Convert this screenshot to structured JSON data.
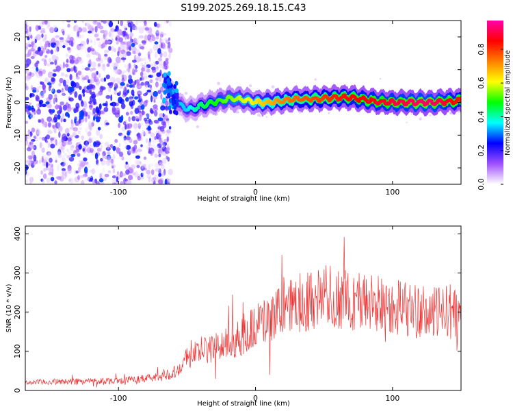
{
  "title": "S199.2025.269.18.15.C43",
  "chart_data": [
    {
      "type": "heatmap",
      "name": "spectrogram",
      "xlabel": "Height of straight line (km)",
      "ylabel": "Frequency (Hz)",
      "xlim": [
        -168,
        150
      ],
      "ylim": [
        -25,
        25
      ],
      "xticks": [
        -100,
        0,
        100
      ],
      "yticks": [
        -20,
        -10,
        0,
        10,
        20
      ],
      "colorbar": {
        "label": "Normalized spectral amplitude",
        "range": [
          0,
          0.97
        ],
        "ticks": [
          0.0,
          0.2,
          0.4,
          0.6,
          0.8
        ],
        "tick_labels": [
          "0.0",
          "0.2",
          "0.4",
          "0.6",
          "0.8"
        ],
        "colors": [
          "#ffffff",
          "#a050ff",
          "#0000ff",
          "#00ffff",
          "#00ff00",
          "#ffff00",
          "#ff8000",
          "#ff0000",
          "#ff00aa"
        ]
      },
      "ridge": {
        "x": [
          -65,
          -60,
          -55,
          -50,
          -45,
          -40,
          -30,
          -20,
          -10,
          0,
          10,
          20,
          30,
          40,
          50,
          60,
          70,
          80,
          90,
          100,
          110,
          120,
          130,
          140,
          150
        ],
        "freq": [
          6,
          2,
          -1,
          -2,
          -2,
          -1,
          0,
          1,
          1,
          0,
          0,
          0.5,
          1,
          1,
          1.2,
          1.5,
          1.5,
          0.8,
          0.2,
          0,
          0,
          0,
          0,
          0.3,
          0.5
        ],
        "amplitude": [
          0.25,
          0.3,
          0.35,
          0.35,
          0.4,
          0.45,
          0.5,
          0.55,
          0.6,
          0.65,
          0.7,
          0.75,
          0.78,
          0.8,
          0.82,
          0.85,
          0.87,
          0.88,
          0.9,
          0.92,
          0.93,
          0.95,
          0.95,
          0.9,
          0.85
        ]
      },
      "noise_region_x": [
        -168,
        -62
      ]
    },
    {
      "type": "line",
      "name": "snr",
      "xlabel": "Height of straight line (km)",
      "ylabel": "SNR (10 * v/v)",
      "xlim": [
        -168,
        150
      ],
      "ylim": [
        0,
        420
      ],
      "xticks": [
        -100,
        0,
        100
      ],
      "yticks": [
        0,
        100,
        200,
        300,
        400
      ],
      "color": "#ee3333",
      "series": [
        {
          "name": "SNR",
          "x": [
            -168,
            -150,
            -120,
            -100,
            -80,
            -70,
            -60,
            -55,
            -50,
            -45,
            -40,
            -30,
            -20,
            -10,
            -5,
            0,
            5,
            10,
            20,
            30,
            40,
            50,
            60,
            70,
            80,
            90,
            100,
            110,
            120,
            130,
            140,
            150
          ],
          "y": [
            20,
            22,
            24,
            25,
            30,
            35,
            45,
            60,
            80,
            95,
            100,
            110,
            120,
            135,
            150,
            165,
            175,
            180,
            200,
            220,
            235,
            240,
            235,
            230,
            225,
            220,
            218,
            210,
            200,
            195,
            205,
            190
          ]
        }
      ]
    }
  ]
}
